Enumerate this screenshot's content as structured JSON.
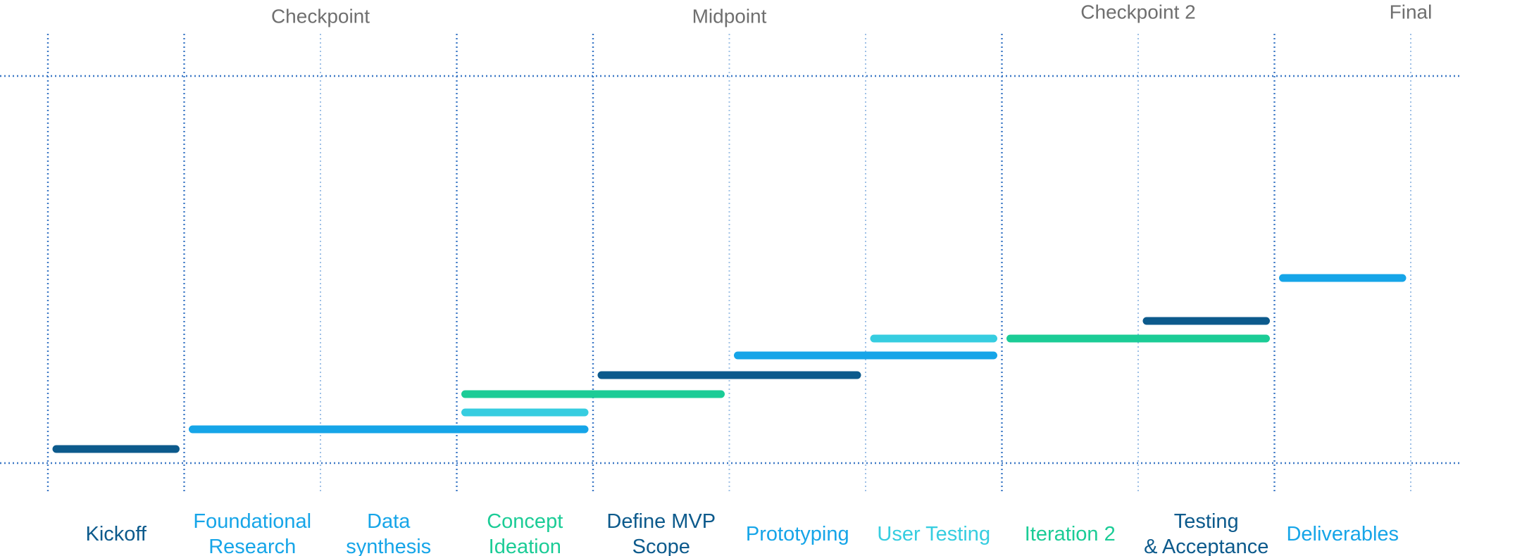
{
  "colors": {
    "navy": "#0c5a8c",
    "blue": "#16a5e8",
    "cyan": "#36cde0",
    "green": "#1bcc96",
    "grid": "#3d79c6",
    "milestone_text": "#6f6f6f"
  },
  "milestones": [
    {
      "label": "Checkpoint",
      "after_phase": 2
    },
    {
      "label": "Midpoint",
      "after_phase": 5
    },
    {
      "label": "Checkpoint 2",
      "after_phase": 8
    },
    {
      "label": "Final",
      "after_phase": 10
    }
  ],
  "phases": [
    {
      "id": "kickoff",
      "lines": [
        "Kickoff"
      ],
      "color": "navy"
    },
    {
      "id": "foundational-research",
      "lines": [
        "Foundational",
        "Research"
      ],
      "color": "blue"
    },
    {
      "id": "data-synthesis",
      "lines": [
        "Data",
        "synthesis"
      ],
      "color": "blue"
    },
    {
      "id": "concept-ideation",
      "lines": [
        "Concept",
        "Ideation"
      ],
      "color": "green"
    },
    {
      "id": "define-mvp-scope",
      "lines": [
        "Define MVP",
        "Scope"
      ],
      "color": "navy"
    },
    {
      "id": "prototyping",
      "lines": [
        "Prototyping"
      ],
      "color": "blue"
    },
    {
      "id": "user-testing",
      "lines": [
        "User Testing"
      ],
      "color": "cyan"
    },
    {
      "id": "iteration-2",
      "lines": [
        "Iteration 2"
      ],
      "color": "green"
    },
    {
      "id": "testing-acceptance",
      "lines": [
        "Testing",
        "& Acceptance"
      ],
      "color": "navy"
    },
    {
      "id": "deliverables",
      "lines": [
        "Deliverables"
      ],
      "color": "blue"
    }
  ],
  "bars": [
    {
      "task": "Kickoff",
      "start": 0,
      "end": 1,
      "level": 0,
      "color": "navy"
    },
    {
      "task": "Foundational Research + Data synthesis",
      "start": 1,
      "end": 4,
      "level": 1,
      "color": "blue"
    },
    {
      "task": "Concept Ideation (short)",
      "start": 3,
      "end": 4,
      "level": 2,
      "color": "cyan"
    },
    {
      "task": "Concept Ideation",
      "start": 3,
      "end": 5,
      "level": 3,
      "color": "green"
    },
    {
      "task": "Define MVP Scope",
      "start": 4,
      "end": 6,
      "level": 4,
      "color": "navy"
    },
    {
      "task": "Prototyping",
      "start": 5,
      "end": 7,
      "level": 5,
      "color": "blue"
    },
    {
      "task": "User Testing",
      "start": 6,
      "end": 7,
      "level": 6,
      "color": "cyan"
    },
    {
      "task": "Iteration 2",
      "start": 7,
      "end": 9,
      "level": 6,
      "color": "green"
    },
    {
      "task": "Testing & Acceptance",
      "start": 8,
      "end": 9,
      "level": 7,
      "color": "navy"
    },
    {
      "task": "Deliverables",
      "start": 9,
      "end": 10,
      "level": 9,
      "color": "blue"
    }
  ]
}
